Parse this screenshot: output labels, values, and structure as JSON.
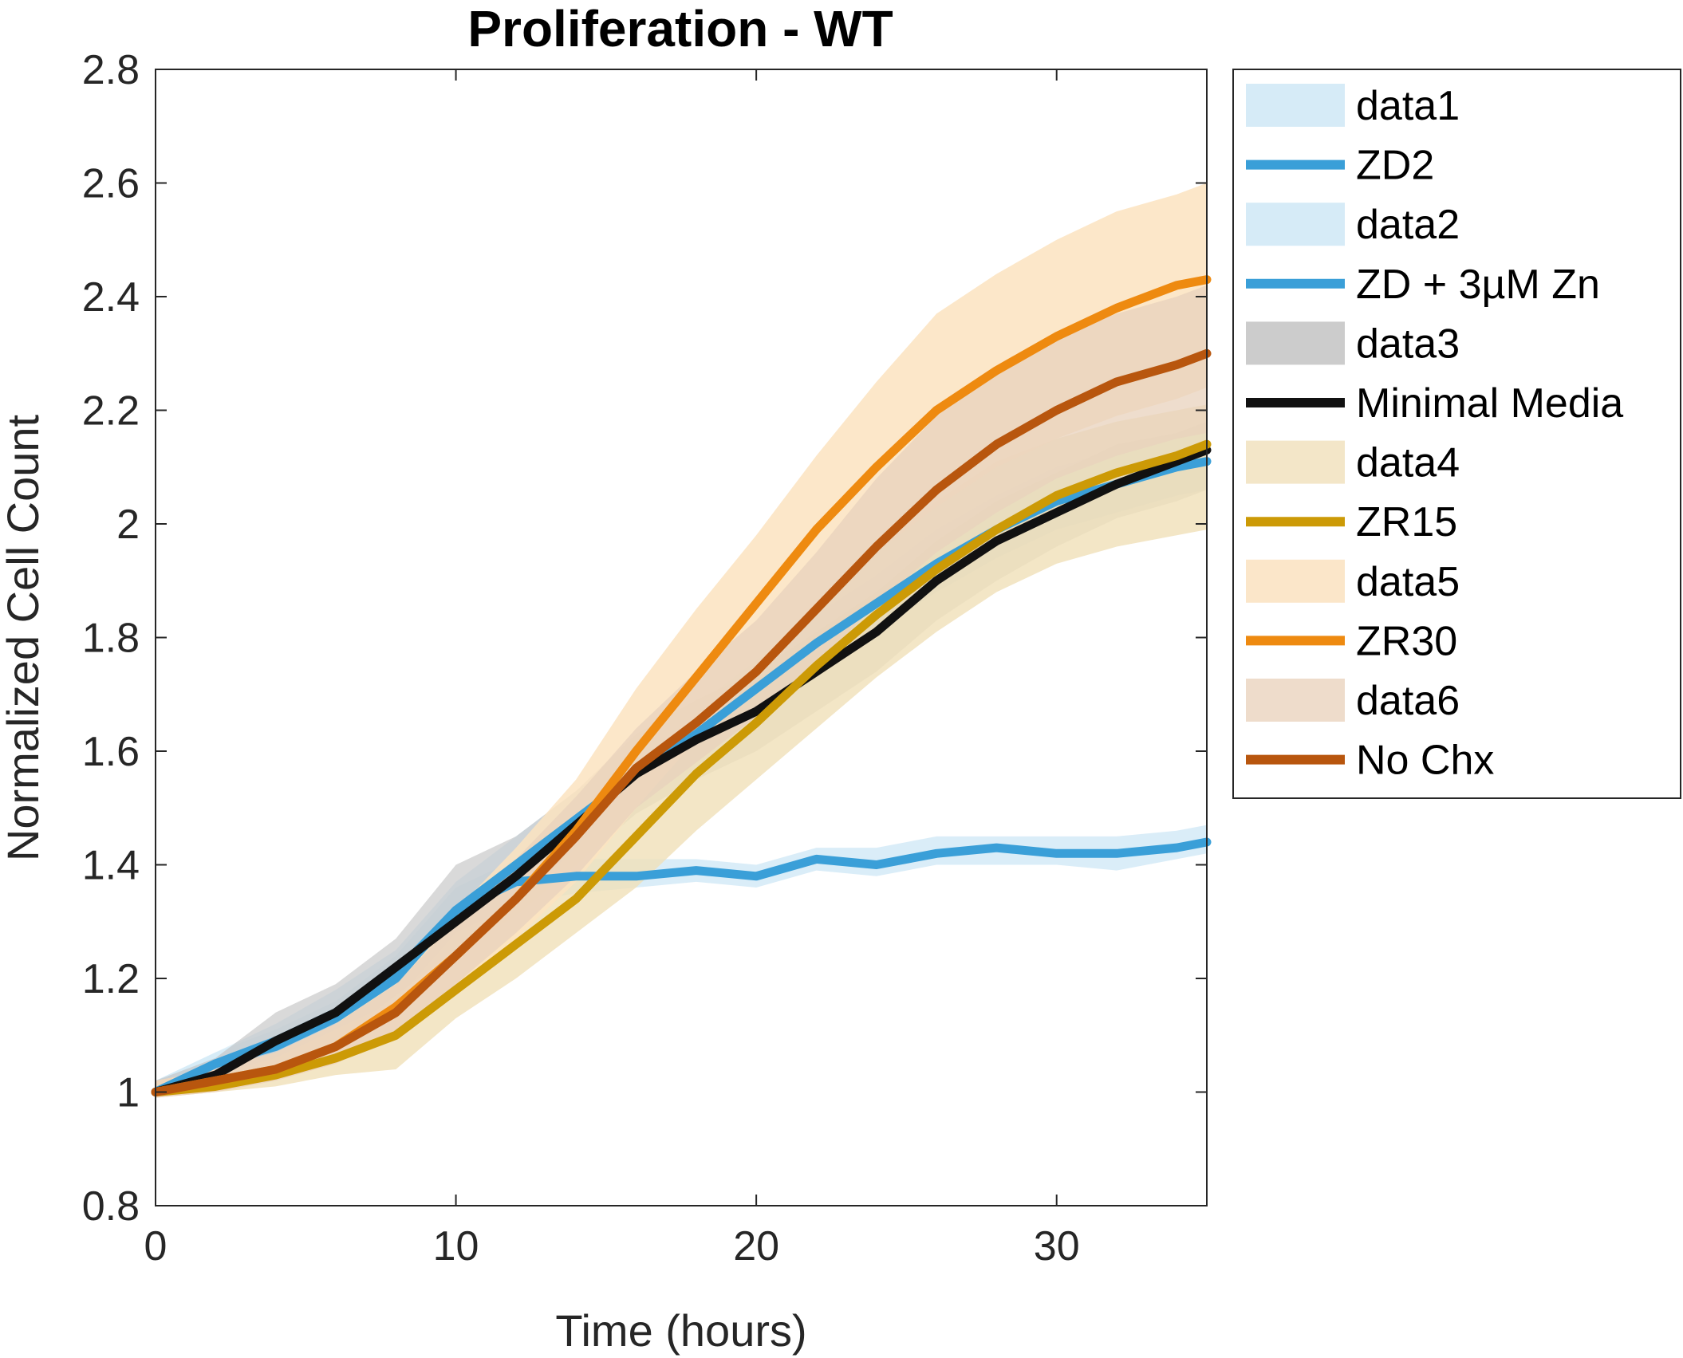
{
  "chart_data": {
    "type": "line",
    "title": "Proliferation - WT",
    "xlabel": "Time (hours)",
    "ylabel": "Normalized Cell Count",
    "xlim": [
      0,
      35
    ],
    "ylim": [
      0.8,
      2.8
    ],
    "xticks": [
      0,
      10,
      20,
      30
    ],
    "xtick_labels": [
      "0",
      "10",
      "20",
      "30"
    ],
    "yticks": [
      0.8,
      1.0,
      1.2,
      1.4,
      1.6,
      1.8,
      2.0,
      2.2,
      2.4,
      2.6,
      2.8
    ],
    "ytick_labels": [
      "0.8",
      "1",
      "1.2",
      "1.4",
      "1.6",
      "1.8",
      "2",
      "2.2",
      "2.4",
      "2.6",
      "2.8"
    ],
    "grid": false,
    "legend_position": "outside-right",
    "x": [
      0,
      2,
      4,
      6,
      8,
      10,
      12,
      14,
      16,
      18,
      20,
      22,
      24,
      26,
      28,
      30,
      32,
      34,
      35
    ],
    "bands": [
      {
        "name": "data1",
        "color": "#d6ebf7",
        "opacity": 0.9,
        "upper": [
          1.02,
          1.07,
          1.11,
          1.16,
          1.24,
          1.36,
          1.41,
          1.41,
          1.41,
          1.41,
          1.4,
          1.43,
          1.43,
          1.45,
          1.45,
          1.45,
          1.45,
          1.46,
          1.47
        ],
        "lower": [
          0.99,
          1.03,
          1.06,
          1.1,
          1.16,
          1.28,
          1.33,
          1.35,
          1.36,
          1.37,
          1.36,
          1.39,
          1.38,
          1.4,
          1.4,
          1.4,
          1.39,
          1.41,
          1.42
        ]
      },
      {
        "name": "data2",
        "color": "#d6ebf7",
        "opacity": 0.7,
        "upper": [
          1.02,
          1.07,
          1.12,
          1.18,
          1.25,
          1.37,
          1.45,
          1.53,
          1.6,
          1.68,
          1.76,
          1.84,
          1.91,
          1.99,
          2.05,
          2.1,
          2.13,
          2.16,
          2.17
        ],
        "lower": [
          0.99,
          1.03,
          1.06,
          1.1,
          1.17,
          1.28,
          1.36,
          1.43,
          1.51,
          1.59,
          1.66,
          1.74,
          1.81,
          1.88,
          1.94,
          1.99,
          2.02,
          2.05,
          2.06
        ]
      },
      {
        "name": "data3",
        "color": "#bfbfbf",
        "opacity": 0.6,
        "upper": [
          1.02,
          1.06,
          1.14,
          1.19,
          1.27,
          1.4,
          1.45,
          1.53,
          1.63,
          1.69,
          1.74,
          1.81,
          1.88,
          1.97,
          2.04,
          2.09,
          2.14,
          2.16,
          2.18
        ],
        "lower": [
          0.99,
          1.01,
          1.05,
          1.09,
          1.17,
          1.25,
          1.31,
          1.4,
          1.49,
          1.55,
          1.6,
          1.67,
          1.74,
          1.83,
          1.9,
          1.96,
          2.01,
          2.04,
          2.06
        ]
      },
      {
        "name": "data4",
        "color": "#f0e0b8",
        "opacity": 0.8,
        "upper": [
          1.02,
          1.03,
          1.06,
          1.11,
          1.16,
          1.25,
          1.33,
          1.43,
          1.55,
          1.66,
          1.75,
          1.86,
          1.96,
          2.04,
          2.11,
          2.15,
          2.18,
          2.2,
          2.21
        ],
        "lower": [
          0.99,
          1.0,
          1.01,
          1.03,
          1.04,
          1.13,
          1.2,
          1.28,
          1.36,
          1.46,
          1.55,
          1.64,
          1.73,
          1.81,
          1.88,
          1.93,
          1.96,
          1.98,
          1.99
        ]
      },
      {
        "name": "data5",
        "color": "#fbe3c0",
        "opacity": 0.85,
        "upper": [
          1.02,
          1.04,
          1.07,
          1.12,
          1.2,
          1.32,
          1.43,
          1.55,
          1.71,
          1.85,
          1.98,
          2.12,
          2.25,
          2.37,
          2.44,
          2.5,
          2.55,
          2.58,
          2.6
        ],
        "lower": [
          0.99,
          1.0,
          1.02,
          1.05,
          1.1,
          1.18,
          1.27,
          1.37,
          1.5,
          1.62,
          1.74,
          1.85,
          1.95,
          2.03,
          2.1,
          2.15,
          2.19,
          2.22,
          2.24
        ]
      },
      {
        "name": "data6",
        "color": "#e8d2bc",
        "opacity": 0.75,
        "upper": [
          1.02,
          1.04,
          1.07,
          1.12,
          1.19,
          1.3,
          1.41,
          1.52,
          1.64,
          1.74,
          1.83,
          1.95,
          2.08,
          2.19,
          2.27,
          2.33,
          2.37,
          2.4,
          2.42
        ],
        "lower": [
          0.99,
          1.0,
          1.02,
          1.05,
          1.1,
          1.19,
          1.28,
          1.38,
          1.5,
          1.58,
          1.66,
          1.75,
          1.86,
          1.95,
          2.02,
          2.08,
          2.12,
          2.15,
          2.16
        ]
      }
    ],
    "series": [
      {
        "name": "ZD2",
        "color": "#3a9fd8",
        "values": [
          1.0,
          1.05,
          1.08,
          1.13,
          1.2,
          1.32,
          1.37,
          1.38,
          1.38,
          1.39,
          1.38,
          1.41,
          1.4,
          1.42,
          1.43,
          1.42,
          1.42,
          1.43,
          1.44
        ]
      },
      {
        "name": "ZD + 3µM Zn",
        "color": "#3a9fd8",
        "values": [
          1.0,
          1.05,
          1.09,
          1.14,
          1.21,
          1.32,
          1.4,
          1.48,
          1.56,
          1.63,
          1.71,
          1.79,
          1.86,
          1.93,
          1.99,
          2.04,
          2.07,
          2.1,
          2.11
        ]
      },
      {
        "name": "Minimal Media",
        "color": "#111111",
        "values": [
          1.0,
          1.03,
          1.09,
          1.14,
          1.22,
          1.3,
          1.38,
          1.47,
          1.56,
          1.62,
          1.67,
          1.74,
          1.81,
          1.9,
          1.97,
          2.02,
          2.07,
          2.11,
          2.13
        ]
      },
      {
        "name": "ZR15",
        "color": "#cc9a06",
        "values": [
          1.0,
          1.01,
          1.03,
          1.06,
          1.1,
          1.18,
          1.26,
          1.34,
          1.45,
          1.56,
          1.65,
          1.75,
          1.84,
          1.92,
          1.99,
          2.05,
          2.09,
          2.12,
          2.14
        ]
      },
      {
        "name": "ZR30",
        "color": "#ee8a10",
        "values": [
          1.0,
          1.02,
          1.04,
          1.08,
          1.15,
          1.24,
          1.34,
          1.46,
          1.6,
          1.73,
          1.86,
          1.99,
          2.1,
          2.2,
          2.27,
          2.33,
          2.38,
          2.42,
          2.43
        ]
      },
      {
        "name": "No Chx",
        "color": "#b8560e",
        "values": [
          1.0,
          1.02,
          1.04,
          1.08,
          1.14,
          1.24,
          1.34,
          1.45,
          1.57,
          1.65,
          1.74,
          1.85,
          1.96,
          2.06,
          2.14,
          2.2,
          2.25,
          2.28,
          2.3
        ]
      }
    ],
    "legend": [
      {
        "label": "data1",
        "kind": "patch",
        "color": "#d6ebf7"
      },
      {
        "label": "ZD2",
        "kind": "line",
        "color": "#3a9fd8"
      },
      {
        "label": "data2",
        "kind": "patch",
        "color": "#d6ebf7"
      },
      {
        "label": "ZD + 3µM Zn",
        "kind": "line",
        "color": "#3a9fd8"
      },
      {
        "label": "data3",
        "kind": "patch",
        "color": "#cccccc"
      },
      {
        "label": "Minimal Media",
        "kind": "line",
        "color": "#111111"
      },
      {
        "label": "data4",
        "kind": "patch",
        "color": "#f3e6c8"
      },
      {
        "label": "ZR15",
        "kind": "line",
        "color": "#cc9a06"
      },
      {
        "label": "data5",
        "kind": "patch",
        "color": "#fbe6c9"
      },
      {
        "label": "ZR30",
        "kind": "line",
        "color": "#ee8a10"
      },
      {
        "label": "data6",
        "kind": "patch",
        "color": "#eedccb"
      },
      {
        "label": "No Chx",
        "kind": "line",
        "color": "#b8560e"
      }
    ]
  }
}
